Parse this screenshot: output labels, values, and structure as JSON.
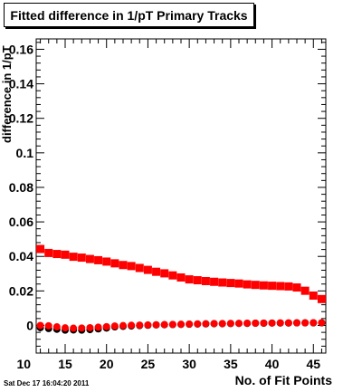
{
  "title": "Fitted difference in 1/pT Primary Tracks",
  "timestamp": "Sat Dec 17 16:04:20 2011",
  "chart_data": {
    "type": "scatter",
    "title": "Fitted difference in 1/pT Primary Tracks",
    "xlabel": "No. of Fit Points",
    "ylabel": "difference in 1/pT",
    "xlim": [
      11.5,
      46.5
    ],
    "ylim": [
      -0.016,
      0.166
    ],
    "x_ticks": [
      "10",
      "15",
      "20",
      "25",
      "30",
      "35",
      "40",
      "45"
    ],
    "y_ticks": [
      "0",
      "0.02",
      "0.04",
      "0.06",
      "0.08",
      "0.1",
      "0.12",
      "0.14",
      "0.16"
    ],
    "grid": false,
    "series": [
      {
        "marker": "square",
        "color": "#ff0000",
        "x": [
          12,
          13,
          14,
          15,
          16,
          17,
          18,
          19,
          20,
          21,
          22,
          23,
          24,
          25,
          26,
          27,
          28,
          29,
          30,
          31,
          32,
          33,
          34,
          35,
          36,
          37,
          38,
          39,
          40,
          41,
          42,
          43,
          44,
          45,
          46
        ],
        "values": [
          0.0443,
          0.042,
          0.0414,
          0.041,
          0.0398,
          0.0393,
          0.0385,
          0.0378,
          0.037,
          0.036,
          0.035,
          0.0344,
          0.0333,
          0.0322,
          0.0311,
          0.0302,
          0.029,
          0.0278,
          0.0267,
          0.0262,
          0.0257,
          0.0253,
          0.0249,
          0.0246,
          0.0243,
          0.0238,
          0.0235,
          0.0232,
          0.023,
          0.0228,
          0.0226,
          0.022,
          0.0201,
          0.0173,
          0.0153
        ]
      },
      {
        "marker": "circle",
        "color": "#000000",
        "x": [
          12,
          13,
          14,
          15,
          16,
          17,
          18,
          19,
          20,
          21,
          22,
          23,
          24,
          25,
          26,
          27,
          28,
          29,
          30,
          31,
          32,
          33,
          34,
          35,
          36,
          37,
          38,
          39,
          40,
          41,
          42,
          43,
          44,
          45,
          46
        ],
        "values": [
          -0.0013,
          -0.0018,
          -0.0022,
          -0.0027,
          -0.0026,
          -0.0027,
          -0.0024,
          -0.002,
          -0.0015,
          -0.0008,
          -0.0005,
          -0.0003,
          -0.0001,
          0.0001,
          0.0003,
          0.0004,
          0.0005,
          0.0006,
          0.0007,
          0.0008,
          0.0009,
          0.001,
          0.001,
          0.0011,
          0.0012,
          0.0012,
          0.0013,
          0.0013,
          0.0014,
          0.0014,
          0.0014,
          0.0015,
          0.0015,
          0.0015,
          0.0015
        ]
      },
      {
        "marker": "circle",
        "color": "#ff0000",
        "x": [
          12,
          13,
          14,
          15,
          16,
          17,
          18,
          19,
          20,
          21,
          22,
          23,
          24,
          25,
          26,
          27,
          28,
          29,
          30,
          31,
          32,
          33,
          34,
          35,
          36,
          37,
          38,
          39,
          40,
          41,
          42,
          43,
          44,
          45,
          46
        ],
        "values": [
          0.0,
          -0.0002,
          -0.0008,
          -0.0014,
          -0.0016,
          -0.0015,
          -0.0013,
          -0.001,
          -0.0007,
          -0.0003,
          -0.0001,
          0.0001,
          0.0002,
          0.0003,
          0.0004,
          0.0005,
          0.0006,
          0.0007,
          0.0008,
          0.0009,
          0.001,
          0.0011,
          0.0011,
          0.0012,
          0.0012,
          0.0013,
          0.0013,
          0.0014,
          0.0014,
          0.0015,
          0.0015,
          0.0015,
          0.0015,
          0.0016,
          0.0016
        ]
      }
    ]
  }
}
